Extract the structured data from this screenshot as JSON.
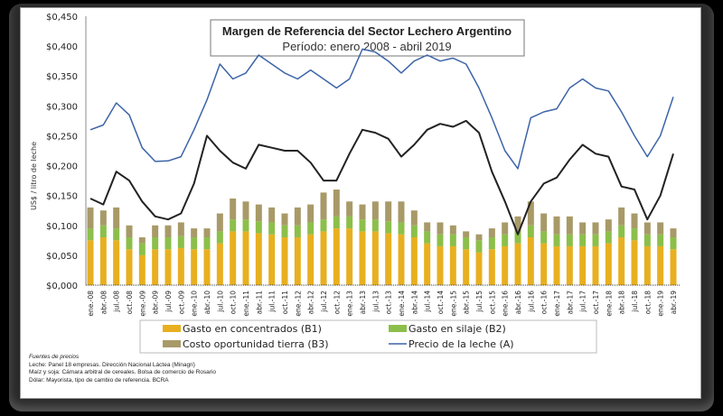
{
  "chart_data": {
    "type": "bar",
    "title": "Margen de Referencia del Sector Lechero Argentino",
    "subtitle": "Período: enero 2008 - abril 2019",
    "ylabel": "US$ / litro de leche",
    "ylim": [
      0,
      0.45
    ],
    "yticks": [
      "$0,000",
      "$0,050",
      "$0,100",
      "$0,150",
      "$0,200",
      "$0,250",
      "$0,300",
      "$0,350",
      "$0,400",
      "$0,450"
    ],
    "categories": [
      "ene.-08",
      "abr.-08",
      "jul.-08",
      "oct.-08",
      "ene.-09",
      "abr.-09",
      "jul.-09",
      "oct.-09",
      "ene.-10",
      "abr.-10",
      "jul.-10",
      "oct.-10",
      "ene.-11",
      "abr.-11",
      "jul.-11",
      "oct.-11",
      "ene.-12",
      "abr.-12",
      "jul.-12",
      "oct.-12",
      "ene.-13",
      "abr.-13",
      "jul.-13",
      "oct.-13",
      "ene.-14",
      "abr.-14",
      "jul.-14",
      "oct.-14",
      "ene.-15",
      "abr.-15",
      "jul.-15",
      "oct.-15",
      "ene.-16",
      "abr.-16",
      "jul.-16",
      "oct.-16",
      "ene.-17",
      "abr.-17",
      "jul.-17",
      "oct.-17",
      "ene.-18",
      "abr.-18",
      "jul.-18",
      "oct.-18",
      "ene.-19",
      "abr.-19"
    ],
    "stacked_series": [
      {
        "name": "Gasto en concentrados (B1)",
        "color": "#e8b020",
        "values": [
          0.075,
          0.08,
          0.075,
          0.06,
          0.05,
          0.06,
          0.06,
          0.062,
          0.06,
          0.06,
          0.07,
          0.09,
          0.09,
          0.087,
          0.085,
          0.08,
          0.08,
          0.085,
          0.09,
          0.095,
          0.095,
          0.09,
          0.09,
          0.087,
          0.085,
          0.08,
          0.07,
          0.065,
          0.065,
          0.06,
          0.055,
          0.06,
          0.065,
          0.07,
          0.08,
          0.07,
          0.065,
          0.065,
          0.065,
          0.065,
          0.07,
          0.08,
          0.075,
          0.065,
          0.065,
          0.06
        ]
      },
      {
        "name": "Gasto en silaje (B2)",
        "color": "#8cbf4a",
        "values": [
          0.02,
          0.02,
          0.02,
          0.02,
          0.02,
          0.02,
          0.02,
          0.02,
          0.02,
          0.02,
          0.02,
          0.02,
          0.02,
          0.02,
          0.02,
          0.02,
          0.02,
          0.02,
          0.02,
          0.02,
          0.02,
          0.02,
          0.02,
          0.02,
          0.02,
          0.02,
          0.02,
          0.02,
          0.02,
          0.02,
          0.02,
          0.02,
          0.02,
          0.02,
          0.02,
          0.02,
          0.02,
          0.02,
          0.02,
          0.02,
          0.02,
          0.02,
          0.02,
          0.02,
          0.02,
          0.02
        ]
      },
      {
        "name": "Costo oportunidad tierra (B3)",
        "color": "#a89a68",
        "values": [
          0.035,
          0.025,
          0.035,
          0.02,
          0.01,
          0.02,
          0.02,
          0.023,
          0.015,
          0.015,
          0.03,
          0.035,
          0.03,
          0.028,
          0.025,
          0.02,
          0.03,
          0.03,
          0.045,
          0.045,
          0.025,
          0.025,
          0.03,
          0.033,
          0.035,
          0.025,
          0.015,
          0.02,
          0.015,
          0.01,
          0.01,
          0.015,
          0.02,
          0.025,
          0.04,
          0.03,
          0.03,
          0.03,
          0.02,
          0.02,
          0.02,
          0.03,
          0.025,
          0.02,
          0.02,
          0.015
        ]
      }
    ],
    "line_series": [
      {
        "name": "Precio de la leche (A)",
        "color": "#3c64a8",
        "values": [
          0.26,
          0.268,
          0.305,
          0.285,
          0.23,
          0.207,
          0.208,
          0.215,
          0.26,
          0.31,
          0.37,
          0.345,
          0.355,
          0.385,
          0.37,
          0.355,
          0.345,
          0.36,
          0.345,
          0.33,
          0.345,
          0.395,
          0.39,
          0.375,
          0.355,
          0.375,
          0.385,
          0.375,
          0.38,
          0.37,
          0.33,
          0.28,
          0.225,
          0.195,
          0.28,
          0.29,
          0.295,
          0.33,
          0.345,
          0.33,
          0.325,
          0.29,
          0.25,
          0.215,
          0.25,
          0.315
        ]
      },
      {
        "color": "#222222",
        "values": [
          0.145,
          0.135,
          0.19,
          0.175,
          0.14,
          0.115,
          0.11,
          0.12,
          0.17,
          0.25,
          0.225,
          0.205,
          0.195,
          0.235,
          0.23,
          0.225,
          0.225,
          0.205,
          0.175,
          0.175,
          0.22,
          0.26,
          0.255,
          0.245,
          0.215,
          0.235,
          0.26,
          0.27,
          0.265,
          0.275,
          0.255,
          0.19,
          0.14,
          0.085,
          0.14,
          0.17,
          0.18,
          0.21,
          0.235,
          0.22,
          0.215,
          0.165,
          0.16,
          0.11,
          0.15,
          0.22
        ]
      }
    ],
    "legend": [
      "Gasto en concentrados (B1)",
      "Gasto en silaje (B2)",
      "Costo oportunidad tierra (B3)",
      "Precio de la leche (A)"
    ],
    "legend_placement": "bottom",
    "grid": false
  },
  "footnotes": {
    "heading": "Fuentes de precios",
    "lines": [
      "Leche: Panel 18 empresas. Dirección Nacional Láctea (Minagri)",
      "Maíz y soja: Cámara arbitral de cereales. Bolsa de comercio de Rosario",
      "Dólar: Mayorista, tipo de cambio de referencia. BCRA"
    ]
  }
}
